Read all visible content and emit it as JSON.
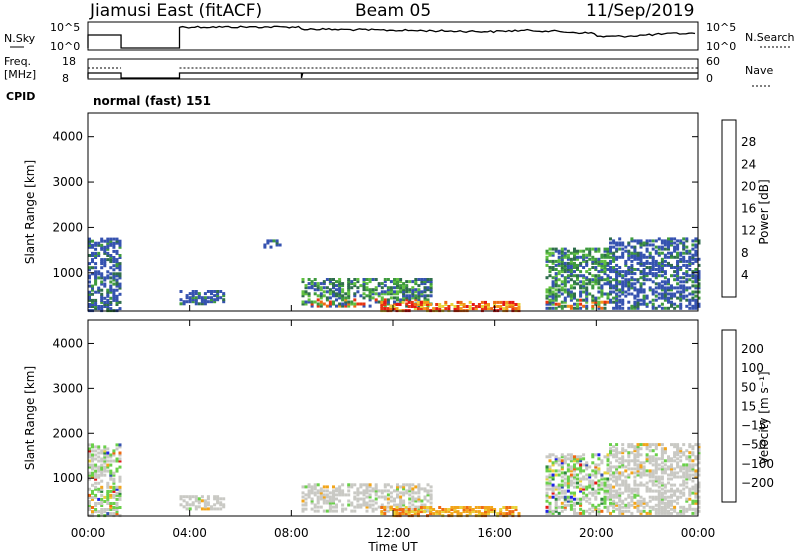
{
  "header": {
    "station": "Jiamusi East (fitACF)",
    "beam": "Beam 05",
    "date": "11/Sep/2019"
  },
  "top_panels": {
    "nsky_label": "N.Sky",
    "nsky_ticks": [
      "10^5",
      "10^0"
    ],
    "nsearch_label": "N.Search",
    "nsearch_ticks": [
      "10^5",
      "10^0"
    ],
    "freq_label_line1": "Freq.",
    "freq_label_line2": "[MHz]",
    "freq_ticks": [
      "18",
      "8"
    ],
    "nave_label": "Nave",
    "nave_ticks": [
      "60",
      "0"
    ],
    "cpid_label": "CPID",
    "cpid_value": "normal (fast) 151"
  },
  "axes": {
    "x_ticks": [
      "00:00",
      "04:00",
      "08:00",
      "12:00",
      "16:00",
      "20:00",
      "00:00"
    ],
    "x_label": "Time UT",
    "y_ticks": [
      "1000",
      "2000",
      "3000",
      "4000"
    ],
    "y_label": "Slant Range [km]"
  },
  "colors": {
    "power_scale": [
      "#1f22e6",
      "#3552b0",
      "#2f6e4c",
      "#3e9a3e",
      "#60c040",
      "#e8d23a",
      "#f29a1a",
      "#ef6a12",
      "#e83310",
      "#e61515"
    ],
    "velocity_scale": [
      "#e61515",
      "#ef6a12",
      "#f2a51a",
      "#e8d23a",
      "#c9c9c4",
      "#c9c9c4",
      "#6ad04a",
      "#2f8a3c",
      "#3552b0",
      "#1f22e6"
    ]
  },
  "chart_data": [
    {
      "type": "heatmap",
      "name": "power",
      "colorbar_label": "Power [dB]",
      "colorbar_ticks": [
        "4",
        "8",
        "12",
        "16",
        "20",
        "24",
        "28"
      ],
      "xlim_hours": [
        0,
        24
      ],
      "ylim_km": [
        180,
        4500
      ],
      "regions": [
        {
          "t0": 0.0,
          "t1": 1.3,
          "r0": 200,
          "r1": 1800,
          "level": "low"
        },
        {
          "t0": 3.6,
          "t1": 5.4,
          "r0": 350,
          "r1": 650,
          "level": "low"
        },
        {
          "t0": 6.9,
          "t1": 7.6,
          "r0": 1600,
          "r1": 1780,
          "level": "low"
        },
        {
          "t0": 8.4,
          "t1": 13.5,
          "r0": 300,
          "r1": 900,
          "level": "mid"
        },
        {
          "t0": 11.5,
          "t1": 17.0,
          "r0": 200,
          "r1": 420,
          "level": "high"
        },
        {
          "t0": 18.0,
          "t1": 20.5,
          "r0": 250,
          "r1": 1600,
          "level": "mid"
        },
        {
          "t0": 20.5,
          "t1": 24.0,
          "r0": 250,
          "r1": 1800,
          "level": "low"
        }
      ]
    },
    {
      "type": "heatmap",
      "name": "velocity",
      "colorbar_label": "Velocity [m s⁻¹]",
      "colorbar_ticks": [
        "200",
        "100",
        "50",
        "15",
        "−15",
        "−50",
        "−100",
        "−200"
      ],
      "xlim_hours": [
        0,
        24
      ],
      "ylim_km": [
        180,
        4500
      ],
      "regions": [
        {
          "t0": 0.0,
          "t1": 1.3,
          "r0": 200,
          "r1": 1800,
          "level": "mixed"
        },
        {
          "t0": 3.6,
          "t1": 5.4,
          "r0": 350,
          "r1": 650,
          "level": "grey"
        },
        {
          "t0": 8.4,
          "t1": 13.5,
          "r0": 300,
          "r1": 900,
          "level": "grey"
        },
        {
          "t0": 11.5,
          "t1": 17.0,
          "r0": 200,
          "r1": 420,
          "level": "negative"
        },
        {
          "t0": 18.0,
          "t1": 20.5,
          "r0": 250,
          "r1": 1600,
          "level": "mixed"
        },
        {
          "t0": 20.5,
          "t1": 24.0,
          "r0": 250,
          "r1": 1800,
          "level": "grey"
        }
      ]
    }
  ]
}
